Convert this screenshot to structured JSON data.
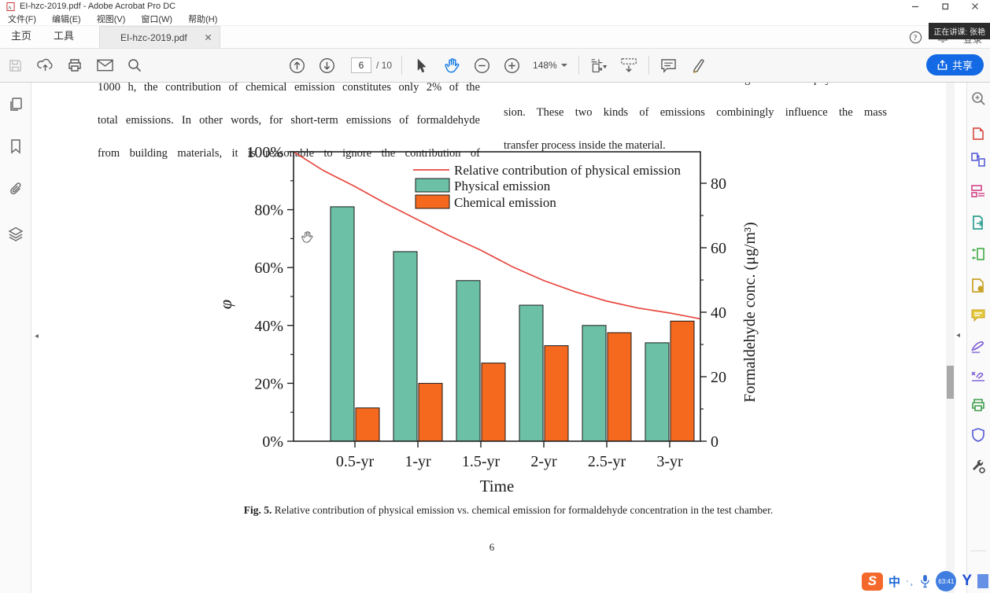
{
  "window": {
    "title": "EI-hzc-2019.pdf - Adobe Acrobat Pro DC"
  },
  "menubar": {
    "items": [
      "文件(F)",
      "编辑(E)",
      "视图(V)",
      "窗口(W)",
      "帮助(H)"
    ]
  },
  "tabbar": {
    "home": "主页",
    "tools": "工具",
    "doc_tab": "EI-hzc-2019.pdf",
    "login": "登录",
    "lecture_overlay": "正在讲课: 张艳"
  },
  "toolbar": {
    "page_current": "6",
    "page_total": "/ 10",
    "zoom_level": "148%",
    "share_label": "共享"
  },
  "document": {
    "left_col": [
      "1000 h, the contribution of chemical emission constitutes only 2% of the",
      "total emissions. In other words, for short-term emissions of formaldehyde",
      "from building materials, it is reasonable to ignore the contribution of"
    ],
    "right_col": [
      "chemical emission should be considered along with the physical emis-",
      "sion. These two kinds of emissions combiningly influence the mass",
      "transfer process inside the material."
    ],
    "caption_bold": "Fig. 5.",
    "caption_rest": " Relative contribution of physical emission vs. chemical emission for formaldehyde concentration in the test chamber.",
    "page_number": "6"
  },
  "chart_data": {
    "type": "bar",
    "title": "",
    "categories": [
      "0.5-yr",
      "1-yr",
      "1.5-yr",
      "2-yr",
      "2.5-yr",
      "3-yr"
    ],
    "series": [
      {
        "name": "Physical emission",
        "color": "#6cc0a5",
        "values_percent": [
          81,
          65.5,
          55.5,
          47,
          40,
          34
        ],
        "approx_conc_ug_m3": [
          72.5,
          58.5,
          49.5,
          42,
          36,
          30.5
        ]
      },
      {
        "name": "Chemical emission",
        "color": "#f4691e",
        "values_percent": [
          11.5,
          20,
          27,
          33,
          37.5,
          41.5
        ],
        "approx_conc_ug_m3": [
          10.5,
          18,
          24,
          29.5,
          33.5,
          37
        ]
      }
    ],
    "line_series": {
      "name": "Relative contribution of physical emission",
      "color": "#e8473f",
      "points_time_vs_percent": [
        [
          0,
          100
        ],
        [
          0.25,
          93.5
        ],
        [
          0.5,
          88
        ],
        [
          0.75,
          82
        ],
        [
          1,
          76.5
        ],
        [
          1.25,
          71
        ],
        [
          1.5,
          66
        ],
        [
          1.75,
          60.3
        ],
        [
          2,
          55.5
        ],
        [
          2.25,
          51.6
        ],
        [
          2.5,
          48.4
        ],
        [
          2.75,
          46
        ],
        [
          3,
          44.3
        ],
        [
          3.24,
          42.3
        ]
      ]
    },
    "left_axis": {
      "label": "φ",
      "tick_labels": [
        "0%",
        "20%",
        "40%",
        "60%",
        "80%",
        "100%"
      ],
      "range": [
        0,
        100
      ]
    },
    "right_axis": {
      "label": "Formaldehyde conc. (μg/m³)",
      "tick_labels": [
        "0",
        "20",
        "40",
        "60",
        "80"
      ],
      "range": [
        0,
        90
      ]
    },
    "x_axis": {
      "label": "Time"
    },
    "legend_position": "top-inside",
    "grid": false
  },
  "overlay": {
    "sogou": "S",
    "ime": "中",
    "dots": "·¸",
    "timer": "63:41",
    "ylogo": "Y"
  }
}
